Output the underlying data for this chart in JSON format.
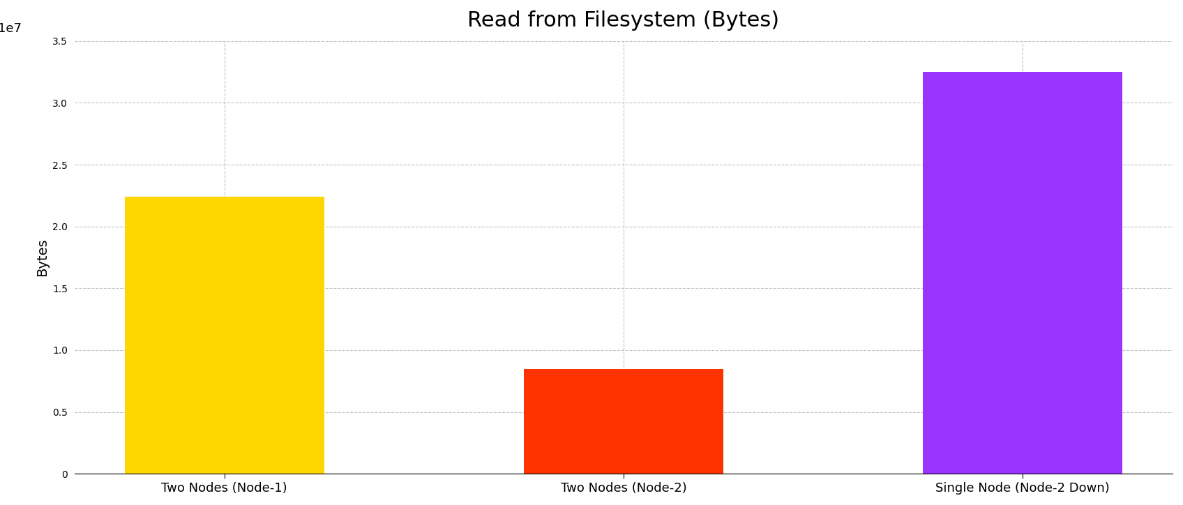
{
  "title": "Read from Filesystem (Bytes)",
  "categories": [
    "Two Nodes (Node-1)",
    "Two Nodes (Node-2)",
    "Single Node (Node-2 Down)"
  ],
  "values": [
    22400000,
    8500000,
    32500000
  ],
  "bar_colors": [
    "#FFD700",
    "#FF3300",
    "#9933FF"
  ],
  "ylabel": "Bytes",
  "ylim": [
    0,
    35000000
  ],
  "yticks": [
    0,
    5000000,
    10000000,
    15000000,
    20000000,
    25000000,
    30000000,
    35000000
  ],
  "background_color": "#FFFFFF",
  "title_fontsize": 22,
  "label_fontsize": 14,
  "tick_fontsize": 13,
  "bar_width": 0.5,
  "grid_color": "#AAAAAA",
  "grid_style": "--",
  "grid_alpha": 0.7
}
